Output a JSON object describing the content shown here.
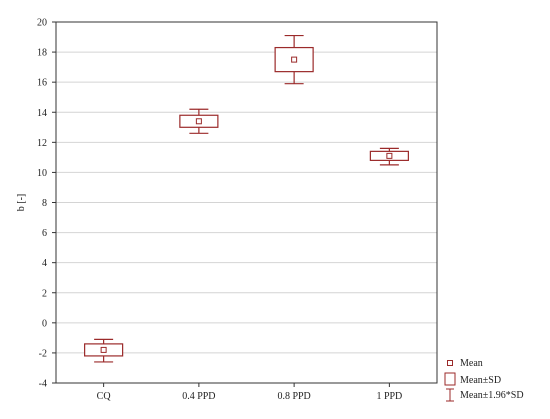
{
  "chart_data": {
    "type": "box",
    "title": "",
    "xlabel": "",
    "ylabel": "b [-]",
    "ylim": [
      -4,
      20
    ],
    "yticks": [
      -4,
      -2,
      0,
      2,
      4,
      6,
      8,
      10,
      12,
      14,
      16,
      18,
      20
    ],
    "grid": true,
    "categories": [
      "CQ",
      "0.4 PPD",
      "0.8 PPD",
      "1 PPD"
    ],
    "series": [
      {
        "mean": [
          -1.8,
          13.4,
          17.5,
          11.1
        ],
        "sd_low": [
          -2.2,
          13.0,
          16.7,
          10.8
        ],
        "sd_high": [
          -1.4,
          13.8,
          18.3,
          11.4
        ],
        "ci_low": [
          -2.6,
          12.6,
          15.9,
          10.5
        ],
        "ci_high": [
          -1.1,
          14.2,
          19.1,
          11.6
        ]
      }
    ],
    "legend": {
      "position": "bottom-right",
      "items": [
        "Mean",
        "Mean±SD",
        "Mean±1.96*SD"
      ]
    },
    "color": "#9b2a2a"
  }
}
